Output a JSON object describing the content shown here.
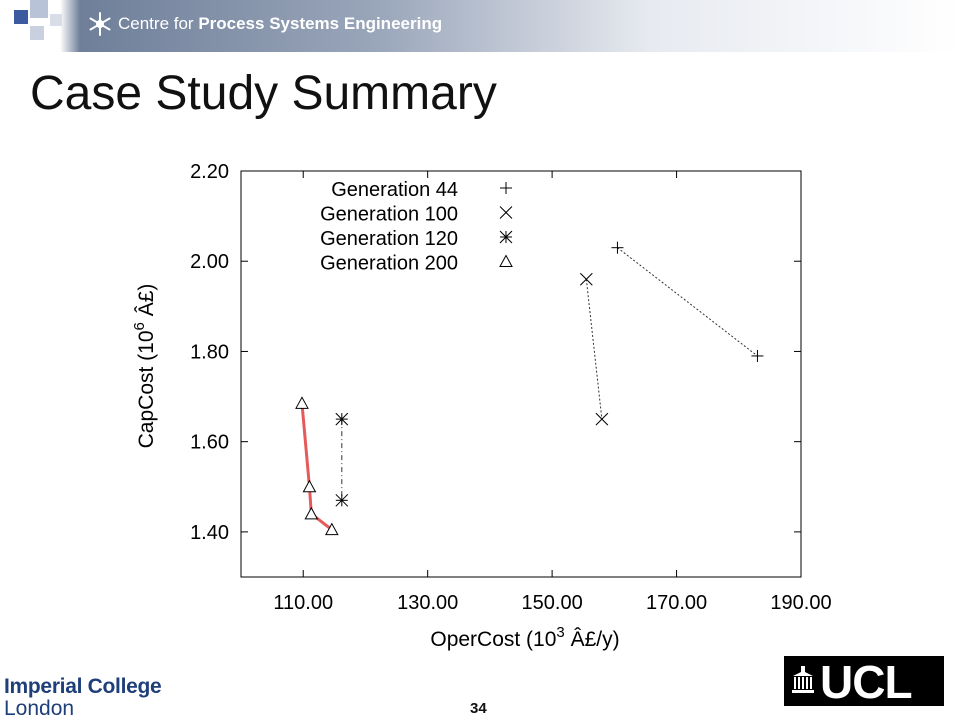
{
  "header": {
    "org_prefix": "Centre for ",
    "org_bold": "Process Systems Engineering"
  },
  "slide": {
    "title": "Case Study Summary",
    "page_number": "34"
  },
  "logos": {
    "imperial_line1": "Imperial College",
    "imperial_line2": "London",
    "ucl": "UCL"
  },
  "colors": {
    "header_squares": "#3b5aa0",
    "gen200_line": "#e65a5a",
    "data_line": "#333333"
  },
  "chart_data": {
    "type": "scatter",
    "xlabel": "OperCost (10",
    "xlabel_sup": "3",
    "xlabel_suffix": " Â£/y)",
    "ylabel": "CapCost (10",
    "ylabel_sup": "6",
    "ylabel_suffix": " Â£)",
    "xlim": [
      100,
      190
    ],
    "ylim": [
      1.3,
      2.2
    ],
    "xticks": [
      110,
      130,
      150,
      170,
      190
    ],
    "xtick_labels": [
      "110.00",
      "130.00",
      "150.00",
      "170.00",
      "190.00"
    ],
    "yticks": [
      1.4,
      1.6,
      1.8,
      2.0,
      2.2
    ],
    "ytick_labels": [
      "1.40",
      "1.60",
      "1.80",
      "2.00",
      "2.20"
    ],
    "legend_position": "top-left",
    "series": [
      {
        "name": "Generation 44",
        "marker": "plus",
        "line": "dotted",
        "points": [
          [
            160.5,
            2.03
          ],
          [
            183.0,
            1.79
          ]
        ]
      },
      {
        "name": "Generation 100",
        "marker": "cross",
        "line": "dotted",
        "points": [
          [
            155.5,
            1.96
          ],
          [
            158.0,
            1.65
          ]
        ]
      },
      {
        "name": "Generation 120",
        "marker": "star",
        "line": "dashdot",
        "points": [
          [
            116.2,
            1.65
          ],
          [
            116.2,
            1.47
          ]
        ]
      },
      {
        "name": "Generation 200",
        "marker": "triangle",
        "line": "solid-red",
        "points": [
          [
            109.8,
            1.685
          ],
          [
            111.0,
            1.5
          ],
          [
            111.3,
            1.44
          ],
          [
            114.6,
            1.405
          ]
        ]
      }
    ]
  }
}
